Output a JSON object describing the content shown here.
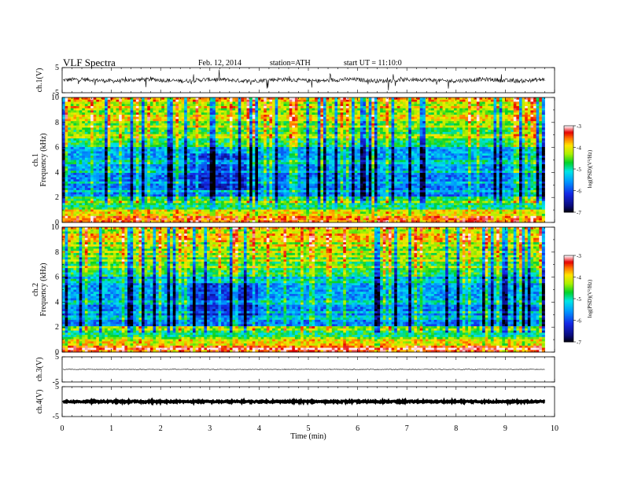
{
  "header": {
    "title": "VLF Spectra",
    "date": "Feb. 12, 2014",
    "station": "station=ATH",
    "start": "start UT =  11:10:0"
  },
  "chart_data": {
    "type": "heatmap",
    "x_axis": {
      "label": "Time (min)",
      "range": [
        0,
        10
      ],
      "ticks": [
        "0",
        "1",
        "2",
        "3",
        "4",
        "5",
        "6",
        "7",
        "8",
        "9",
        "10"
      ]
    },
    "waveforms": [
      {
        "name": "ch.1(V)",
        "ylim": [
          -5,
          5
        ],
        "ticks": [
          "5",
          "-5"
        ],
        "level": 0,
        "noise": "strong"
      },
      {
        "name": "ch.3(V)",
        "ylim": [
          -5,
          5
        ],
        "ticks": [
          "5",
          "-5"
        ],
        "level": 0,
        "noise": "weak"
      },
      {
        "name": "ch.4(V)",
        "ylim": [
          -5,
          5
        ],
        "ticks": [
          "5",
          "-5"
        ],
        "level": 0,
        "noise": "thick"
      }
    ],
    "spectrograms": [
      {
        "name": "ch.1",
        "ylabel": "Frequency (kHz)",
        "ylim": [
          0,
          10
        ],
        "ticks": [
          "0",
          "2",
          "4",
          "6",
          "8",
          "10"
        ],
        "data_end_min": 9.8
      },
      {
        "name": "ch.2",
        "ylabel": "Frequency (kHz)",
        "ylim": [
          0,
          10
        ],
        "ticks": [
          "0",
          "2",
          "4",
          "6",
          "8",
          "10"
        ],
        "data_end_min": 9.8
      }
    ],
    "colorbar": {
      "label": "log(PSD)(V²/Hz)",
      "range": [
        -7,
        -3
      ],
      "ticks": [
        "-3",
        "-4",
        "-5",
        "-6",
        "-7"
      ]
    }
  }
}
